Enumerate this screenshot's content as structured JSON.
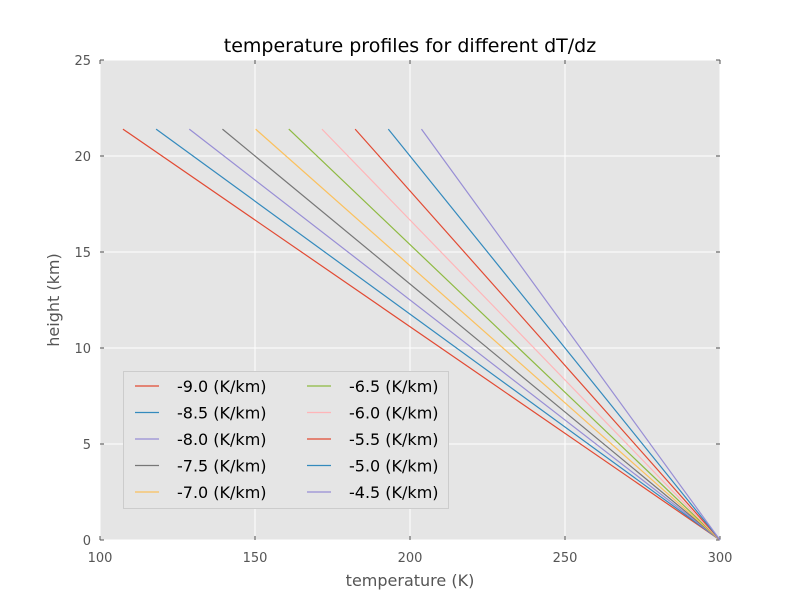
{
  "chart_data": {
    "type": "line",
    "title": "temperature profiles for different dT/dz",
    "xlabel": "temperature (K)",
    "ylabel": "height (km)",
    "xlim": [
      100,
      300
    ],
    "ylim": [
      0,
      25
    ],
    "xticks": [
      "100",
      "150",
      "200",
      "250",
      "300"
    ],
    "yticks": [
      "0",
      "5",
      "10",
      "15",
      "20",
      "25"
    ],
    "grid": true,
    "legend_placement": "lower-left",
    "legend_columns": 2,
    "series": [
      {
        "name": "-9.0 (K/km)",
        "color": "#e24a33",
        "x": [
          300,
          107.4
        ],
        "y": [
          0,
          21.4
        ]
      },
      {
        "name": "-8.5 (K/km)",
        "color": "#348abd",
        "x": [
          300,
          118.1
        ],
        "y": [
          0,
          21.4
        ]
      },
      {
        "name": "-8.0 (K/km)",
        "color": "#988ed5",
        "x": [
          300,
          128.8
        ],
        "y": [
          0,
          21.4
        ]
      },
      {
        "name": "-7.5 (K/km)",
        "color": "#777777",
        "x": [
          300,
          139.5
        ],
        "y": [
          0,
          21.4
        ]
      },
      {
        "name": "-7.0 (K/km)",
        "color": "#fbc15e",
        "x": [
          300,
          150.2
        ],
        "y": [
          0,
          21.4
        ]
      },
      {
        "name": "-6.5 (K/km)",
        "color": "#8eba42",
        "x": [
          300,
          160.9
        ],
        "y": [
          0,
          21.4
        ]
      },
      {
        "name": "-6.0 (K/km)",
        "color": "#ffb5b8",
        "x": [
          300,
          171.6
        ],
        "y": [
          0,
          21.4
        ]
      },
      {
        "name": "-5.5 (K/km)",
        "color": "#e24a33",
        "x": [
          300,
          182.3
        ],
        "y": [
          0,
          21.4
        ]
      },
      {
        "name": "-5.0 (K/km)",
        "color": "#348abd",
        "x": [
          300,
          193.0
        ],
        "y": [
          0,
          21.4
        ]
      },
      {
        "name": "-4.5 (K/km)",
        "color": "#988ed5",
        "x": [
          300,
          203.7
        ],
        "y": [
          0,
          21.4
        ]
      }
    ]
  }
}
